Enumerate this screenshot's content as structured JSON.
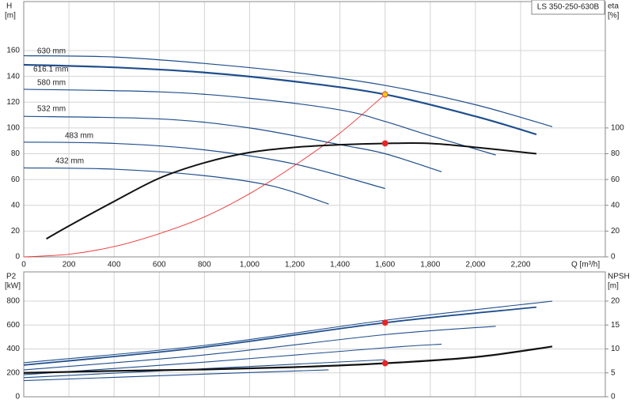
{
  "chart_data": [
    {
      "type": "line",
      "legend_title": "LS 350-250-630B",
      "y_label": "H",
      "y_unit": "[m]",
      "y2_label": "eta",
      "y2_unit": "[%]",
      "x_label": "Q [m³/h]",
      "xlim": [
        0,
        2575
      ],
      "xticks": [
        0,
        200,
        400,
        600,
        800,
        {
          "value": 1000,
          "label": "1,000"
        },
        {
          "value": 1200,
          "label": "1,200"
        },
        {
          "value": 1400,
          "label": "1,400"
        },
        {
          "value": 1600,
          "label": "1,600"
        },
        {
          "value": 1800,
          "label": "1,800"
        },
        {
          "value": 2000,
          "label": "2,000"
        },
        {
          "value": 2200,
          "label": "2,200"
        }
      ],
      "ylim": [
        0,
        198
      ],
      "yticks": [
        0,
        20,
        40,
        60,
        80,
        100,
        120,
        140,
        160
      ],
      "y2lim": [
        0,
        198
      ],
      "y2ticks": [
        0,
        20,
        40,
        60,
        80,
        100
      ],
      "grid": true,
      "series": [
        {
          "name": "630 mm",
          "color": "#1f4e8c",
          "width": 1.2,
          "x": [
            0,
            400,
            800,
            1200,
            1600,
            2000,
            2340
          ],
          "values": [
            156,
            155,
            150,
            143,
            133,
            118,
            101
          ]
        },
        {
          "name": "616.1 mm",
          "color": "#1f4e8c",
          "width": 2.2,
          "x": [
            0,
            400,
            800,
            1200,
            1600,
            2000,
            2270
          ],
          "values": [
            149,
            147,
            143,
            136,
            126,
            109,
            95
          ]
        },
        {
          "name": "580 mm",
          "color": "#1f4e8c",
          "width": 1.2,
          "x": [
            0,
            600,
            1000,
            1400,
            1600,
            1800,
            2090
          ],
          "values": [
            130,
            128,
            123,
            114,
            105,
            94,
            79
          ]
        },
        {
          "name": "532 mm",
          "color": "#1f4e8c",
          "width": 1.2,
          "x": [
            0,
            600,
            1000,
            1400,
            1600,
            1850
          ],
          "values": [
            109,
            107,
            100,
            87,
            80,
            66
          ]
        },
        {
          "name": "483 mm",
          "color": "#1f4e8c",
          "width": 1.2,
          "x": [
            0,
            400,
            800,
            1200,
            1600
          ],
          "values": [
            89,
            88,
            83,
            72,
            53
          ]
        },
        {
          "name": "432 mm",
          "color": "#1f4e8c",
          "width": 1.2,
          "x": [
            0,
            400,
            800,
            1100,
            1350
          ],
          "values": [
            69,
            68,
            63,
            55,
            41
          ]
        },
        {
          "color": "#ee3333",
          "width": 0.9,
          "x": [
            0,
            200,
            400,
            600,
            800,
            1000,
            1200,
            1400,
            1600
          ],
          "values": [
            0,
            2,
            8,
            18,
            31,
            49,
            71,
            96,
            126
          ]
        },
        {
          "color": "#111111",
          "width": 2,
          "axis": "y2",
          "x": [
            100,
            200,
            400,
            600,
            800,
            1000,
            1200,
            1400,
            1600,
            1800,
            2000,
            2270
          ],
          "values": [
            14,
            24,
            43,
            61,
            73,
            81,
            85,
            87,
            88,
            88,
            85,
            80
          ]
        },
        {
          "color": "#f5c518",
          "marker": true,
          "x": [
            1600
          ],
          "values": [
            126
          ]
        },
        {
          "color": "#ee2222",
          "marker": true,
          "axis": "y2",
          "x": [
            1600
          ],
          "values": [
            88
          ]
        }
      ]
    },
    {
      "type": "line",
      "y_label": "P2",
      "y_unit": "[kW]",
      "y2_label": "NPSH",
      "y2_unit": "[m]",
      "xlim": [
        0,
        2575
      ],
      "ylim": [
        0,
        1045
      ],
      "yticks": [
        0,
        200,
        400,
        600,
        800
      ],
      "y2lim": [
        0,
        26.1
      ],
      "y2ticks": [
        0,
        5,
        10,
        15,
        20
      ],
      "grid": true,
      "series": [
        {
          "color": "#1f4e8c",
          "width": 1.1,
          "x": [
            0,
            800,
            1600,
            2340
          ],
          "values": [
            285,
            430,
            640,
            800
          ]
        },
        {
          "color": "#1f4e8c",
          "width": 1.8,
          "x": [
            0,
            800,
            1600,
            2270
          ],
          "values": [
            265,
            415,
            620,
            750
          ]
        },
        {
          "color": "#1f4e8c",
          "width": 1.1,
          "x": [
            0,
            800,
            1600,
            2090
          ],
          "values": [
            225,
            350,
            520,
            590
          ]
        },
        {
          "color": "#1f4e8c",
          "width": 1.1,
          "x": [
            0,
            800,
            1600,
            1850
          ],
          "values": [
            185,
            290,
            410,
            440
          ]
        },
        {
          "color": "#1f4e8c",
          "width": 1.1,
          "x": [
            0,
            800,
            1600
          ],
          "values": [
            160,
            235,
            310
          ]
        },
        {
          "color": "#1f4e8c",
          "width": 1.1,
          "x": [
            0,
            800,
            1350
          ],
          "values": [
            135,
            190,
            225
          ]
        },
        {
          "color": "#111111",
          "width": 2.2,
          "axis": "y2",
          "x": [
            0,
            400,
            800,
            1200,
            1600,
            2000,
            2340
          ],
          "values": [
            5.0,
            5.4,
            5.7,
            6.2,
            7.0,
            8.3,
            10.5
          ]
        },
        {
          "color": "#ee2222",
          "marker": true,
          "x": [
            1600
          ],
          "values": [
            620
          ]
        },
        {
          "color": "#ee2222",
          "marker": true,
          "axis": "y2",
          "x": [
            1600
          ],
          "values": [
            7.0
          ]
        }
      ]
    }
  ]
}
